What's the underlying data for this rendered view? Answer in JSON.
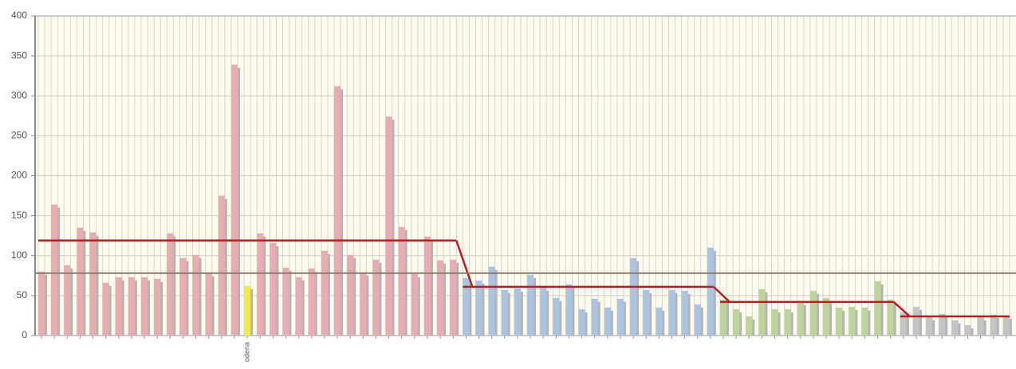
{
  "chart_data": {
    "type": "bar",
    "ylim": [
      0,
      400
    ],
    "yticks": [
      0,
      50,
      100,
      150,
      200,
      250,
      300,
      350,
      400
    ],
    "grid": true,
    "reference_line": {
      "value": 78,
      "color": "#8c7b6e"
    },
    "step_line_color": "#b22222",
    "shadow_color": "#b5b5b5",
    "highlight": {
      "category": "odena",
      "color": "#f3ea4e"
    },
    "groups": [
      {
        "color": "#e6aeb0",
        "average": 119,
        "categories": [
          null,
          null,
          null,
          null,
          null,
          null,
          null,
          null,
          null,
          null,
          null,
          null,
          null,
          null,
          null,
          null,
          "odena",
          null,
          null,
          null,
          null,
          null,
          null,
          null,
          null,
          null,
          null,
          null,
          null,
          null,
          null,
          null,
          null
        ],
        "values": [
          80,
          164,
          88,
          135,
          129,
          66,
          73,
          73,
          73,
          71,
          128,
          97,
          101,
          78,
          175,
          339,
          62,
          128,
          116,
          85,
          73,
          84,
          106,
          312,
          101,
          79,
          95,
          274,
          136,
          77,
          124,
          94,
          95
        ]
      },
      {
        "color": "#aac4e2",
        "average": 61,
        "categories": [
          null,
          null,
          null,
          null,
          null,
          null,
          null,
          null,
          null,
          null,
          null,
          null,
          null,
          null,
          null,
          null,
          null,
          null,
          null,
          null
        ],
        "values": [
          72,
          69,
          86,
          57,
          59,
          76,
          60,
          47,
          64,
          33,
          46,
          35,
          46,
          97,
          57,
          35,
          57,
          56,
          39,
          110
        ]
      },
      {
        "color": "#bcd59a",
        "average": 42,
        "categories": [
          null,
          null,
          null,
          null,
          null,
          null,
          null,
          null,
          null,
          null,
          null,
          null,
          null,
          null
        ],
        "values": [
          45,
          33,
          24,
          58,
          33,
          33,
          42,
          56,
          47,
          35,
          36,
          35,
          68,
          45
        ]
      },
      {
        "color": "#c4c4c4",
        "average": 24,
        "categories": [
          null,
          null,
          null,
          null,
          null,
          null,
          null,
          null,
          null
        ],
        "values": [
          29,
          36,
          23,
          27,
          19,
          13,
          23,
          26,
          25
        ]
      }
    ]
  }
}
